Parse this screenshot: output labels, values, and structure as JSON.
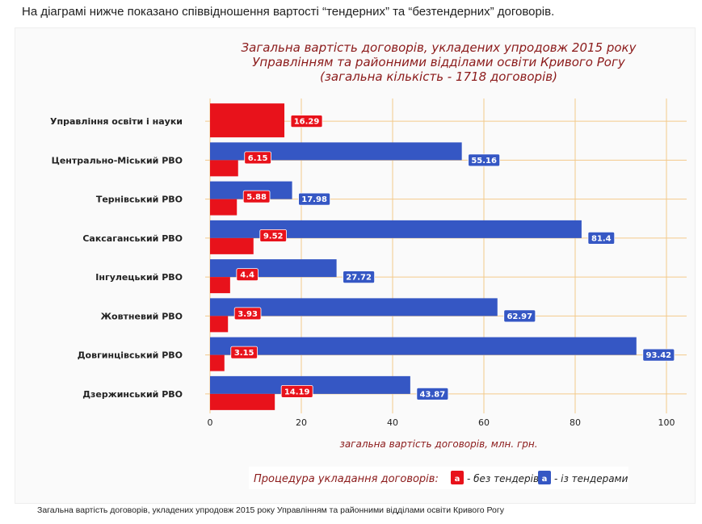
{
  "intro_text": "На діаграмі нижче показано співвідношення вартості “тендерних” та “безтендерних” договорів.",
  "caption": "Загальна вартість договорів, укладених упродовж 2015 року Управлінням та районними відділами освіти Кривого Рогу",
  "colors": {
    "no_tender": "#e8121b",
    "tender": "#3557c4",
    "grid": "#f3c98a",
    "title": "#8b1a1a"
  },
  "chart_data": {
    "type": "bar",
    "orientation": "horizontal",
    "title": [
      "Загальна вартість договорів, укладених упродовж 2015 року",
      "Управлінням та районними відділами освіти Кривого Рогу",
      "(загальна кількість - 1718 договорів)"
    ],
    "xlabel": "загальна вартість договорів, млн. грн.",
    "ylabel": "",
    "xlim": [
      0,
      100
    ],
    "xticks": [
      0,
      20,
      40,
      60,
      80,
      100
    ],
    "grid": true,
    "categories": [
      "Управління освіти і науки",
      "Центрально-Міський РВО",
      "Тернівський РВО",
      "Саксаганський РВО",
      "Інгулецький РВО",
      "Жовтневий РВО",
      "Довгинцівський РВО",
      "Дзержинський РВО"
    ],
    "series": [
      {
        "name": "- без тендерів",
        "legend_marker": "a",
        "color": "#e8121b",
        "values": [
          16.29,
          6.15,
          5.88,
          9.52,
          4.4,
          3.93,
          3.15,
          14.19
        ]
      },
      {
        "name": "- із тендерами",
        "legend_marker": "a",
        "color": "#3557c4",
        "values": [
          null,
          55.16,
          17.98,
          81.4,
          27.72,
          62.97,
          93.42,
          43.87
        ]
      }
    ],
    "value_labels_no_tender": [
      "16.29",
      "6.15",
      "5.88",
      "9.52",
      "4.4",
      "3.93",
      "3.15",
      "14.19"
    ],
    "value_labels_tender": [
      "",
      "55.16",
      "17.98",
      "81.4",
      "27.72",
      "62.97",
      "93.42",
      "43.87"
    ],
    "legend": {
      "title": "Процедура укладання договорів:",
      "placement": "bottom"
    }
  }
}
